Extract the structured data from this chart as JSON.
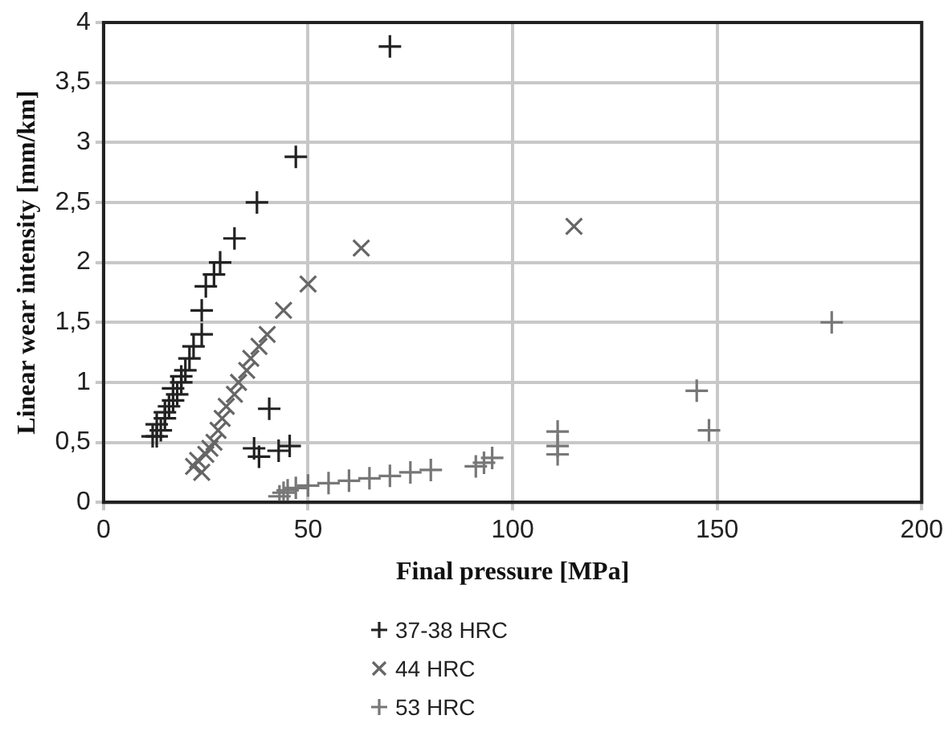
{
  "chart_data": {
    "type": "scatter",
    "xlabel": "Final pressure [MPa]",
    "ylabel": "Linear wear intensity [mm/km]",
    "xlim": [
      0,
      200
    ],
    "xticks": [
      0,
      50,
      100,
      150,
      200
    ],
    "ylim": [
      0,
      4
    ],
    "yticks": [
      0,
      {
        "value": 0.5,
        "label": "0,5"
      },
      1,
      {
        "value": 1.5,
        "label": "1,5"
      },
      2,
      {
        "value": 2.5,
        "label": "2,5"
      },
      3,
      {
        "value": 3.5,
        "label": "3,5"
      },
      4
    ],
    "grid": true,
    "legend": "bottom",
    "series": [
      {
        "name": "37-38 HRC",
        "color": "#222222",
        "marker": "plus",
        "x": [
          70,
          47,
          37.5,
          32,
          28.5,
          27,
          25,
          24,
          24,
          22,
          21,
          20,
          19,
          18,
          17,
          16,
          15,
          14,
          13,
          12,
          13,
          15,
          17,
          19,
          40.5,
          36.8,
          42.8,
          45.5,
          38
        ],
        "values": [
          3.8,
          2.88,
          2.5,
          2.2,
          2.0,
          1.9,
          1.8,
          1.6,
          1.4,
          1.3,
          1.2,
          1.1,
          1.0,
          0.9,
          0.85,
          0.8,
          0.7,
          0.6,
          0.55,
          0.55,
          0.65,
          0.75,
          0.95,
          1.05,
          0.78,
          0.45,
          0.43,
          0.47,
          0.38
        ]
      },
      {
        "name": "44 HRC",
        "color": "#666666",
        "marker": "cross",
        "x": [
          115,
          63,
          50,
          44,
          40,
          38,
          36,
          35,
          33,
          32,
          30,
          29,
          28,
          27,
          25,
          23,
          22,
          24,
          26
        ],
        "values": [
          2.3,
          2.12,
          1.82,
          1.6,
          1.4,
          1.3,
          1.2,
          1.1,
          1.0,
          0.9,
          0.8,
          0.7,
          0.6,
          0.5,
          0.4,
          0.35,
          0.3,
          0.25,
          0.45
        ]
      },
      {
        "name": "53 HRC",
        "color": "#777777",
        "marker": "plus",
        "x": [
          178,
          145,
          148,
          111,
          111,
          111,
          95,
          93,
          91,
          80,
          75,
          70,
          65,
          60,
          55,
          50,
          47,
          45,
          44,
          43
        ],
        "values": [
          1.5,
          0.93,
          0.6,
          0.59,
          0.47,
          0.4,
          0.37,
          0.33,
          0.3,
          0.27,
          0.25,
          0.22,
          0.2,
          0.18,
          0.16,
          0.14,
          0.12,
          0.1,
          0.08,
          0.05
        ]
      }
    ]
  }
}
